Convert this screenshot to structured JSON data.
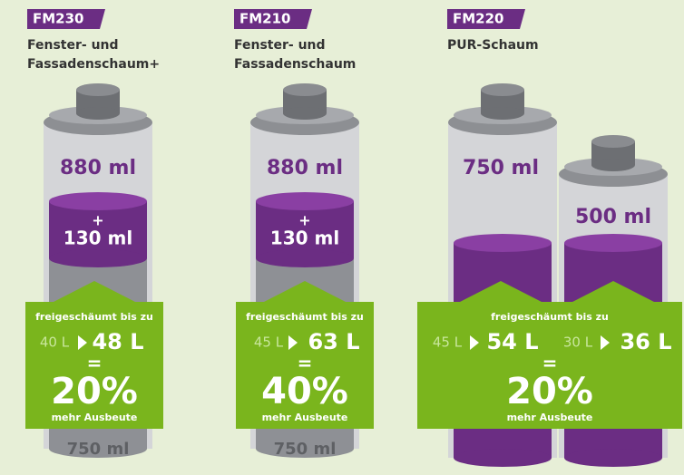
{
  "products": [
    {
      "code": "FM230",
      "name": [
        "Fenster- und",
        "Fassadenschaum+"
      ],
      "can_volume": "880 ml",
      "plus": "+",
      "extra": "130 ml",
      "base": "750 ml",
      "box": {
        "caption": "freigeschäumt bis zu",
        "from": "40 L",
        "to": "48 L",
        "equals": "=",
        "percent": "20%",
        "note": "mehr Ausbeute"
      }
    },
    {
      "code": "FM210",
      "name": [
        "Fenster- und",
        "Fassadenschaum"
      ],
      "can_volume": "880 ml",
      "plus": "+",
      "extra": "130 ml",
      "base": "750 ml",
      "box": {
        "caption": "freigeschäumt bis zu",
        "from": "45 L",
        "to": "63 L",
        "equals": "=",
        "percent": "40%",
        "note": "mehr Ausbeute"
      }
    },
    {
      "code": "FM220",
      "name": [
        "PUR-Schaum"
      ],
      "can_volumes": [
        "750 ml",
        "500 ml"
      ],
      "box": {
        "caption": "freigeschäumt bis zu",
        "pairs": [
          {
            "from": "45 L",
            "to": "54 L"
          },
          {
            "from": "30 L",
            "to": "36 L"
          }
        ],
        "equals": "=",
        "percent": "20%",
        "note": "mehr Ausbeute"
      }
    }
  ]
}
